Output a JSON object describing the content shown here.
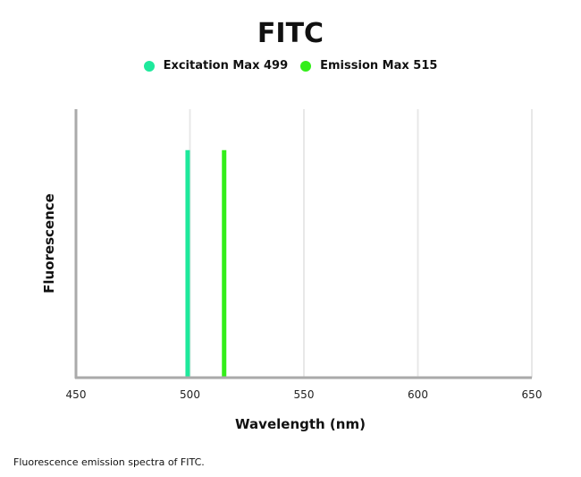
{
  "chart_data": {
    "type": "bar",
    "title": "FITC",
    "xlabel": "Wavelength (nm)",
    "ylabel": "Fluorescence",
    "xlim": [
      450,
      650
    ],
    "ylim": [
      0,
      1.18
    ],
    "xticks": [
      450,
      500,
      550,
      600,
      650
    ],
    "grid": true,
    "legend_position": "top",
    "series": [
      {
        "name": "Excitation Max 499",
        "x": 499,
        "value": 1,
        "color": "#1ee99c"
      },
      {
        "name": "Emission Max 515",
        "x": 515,
        "value": 1,
        "color": "#33ee1a"
      }
    ]
  },
  "caption": "Fluorescence emission spectra of FITC."
}
